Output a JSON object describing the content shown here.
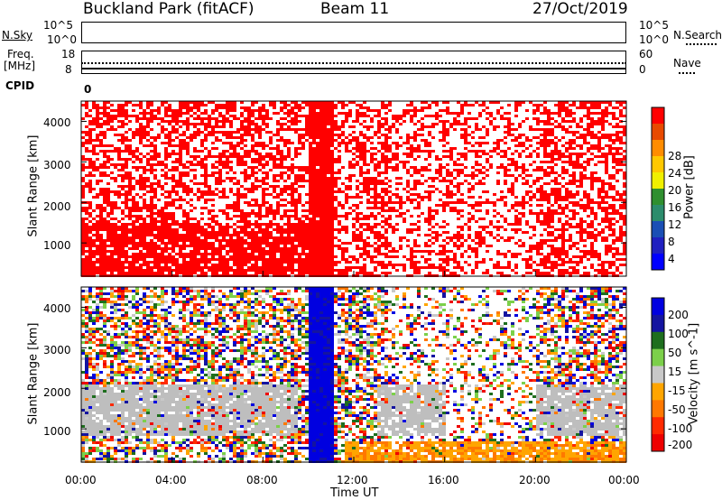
{
  "header": {
    "site": "Buckland Park (fitACF)",
    "beam": "Beam 11",
    "date": "27/Oct/2019"
  },
  "top_panels": {
    "nsky_label": "N.Sky",
    "nsky_ticks": [
      "10^5",
      "10^0"
    ],
    "nsearch_label": "N.Search",
    "nsearch_ticks": [
      "10^5",
      "10^0"
    ],
    "freq_label": "Freq.",
    "freq_unit": "[MHz]",
    "freq_ticks": [
      "18",
      "8"
    ],
    "nave_label": "Nave",
    "nave_ticks": [
      "60",
      "0"
    ],
    "cpid_label": "CPID",
    "cpid_value": "0"
  },
  "chart_data": [
    {
      "type": "heatmap",
      "panel": "power",
      "ylabel": "Slant Range [km]",
      "yticks": [
        "4000",
        "3000",
        "2000",
        "1000"
      ],
      "ylim": [
        180,
        4500
      ],
      "xticks": [
        "00:00",
        "04:00",
        "08:00",
        "12:00",
        "16:00",
        "20:00",
        "00:00"
      ],
      "colorbar_label": "Power [dB]",
      "colorbar_ticks": [
        "28",
        "24",
        "20",
        "16",
        "12",
        "8",
        "4"
      ],
      "colorbar_colors": [
        "#ff0000",
        "#e84a00",
        "#ff8c00",
        "#ffc800",
        "#f0f000",
        "#2f8f2f",
        "#2c8c6c",
        "#1a4fb5",
        "#2020c0",
        "#0000ff"
      ],
      "dominant_color": "#ff0000",
      "description_values": {
        "low_echo_gap_start_hour": 11.3,
        "dense_column_hour": 10.2
      }
    },
    {
      "type": "heatmap",
      "panel": "velocity",
      "xlabel": "Time UT",
      "ylabel": "Slant Range [km]",
      "yticks": [
        "4000",
        "3000",
        "2000",
        "1000"
      ],
      "ylim": [
        180,
        4500
      ],
      "xticks": [
        "00:00",
        "04:00",
        "08:00",
        "12:00",
        "16:00",
        "20:00",
        "00:00"
      ],
      "colorbar_label": "Velocity [m s^-1]",
      "colorbar_ticks": [
        "200",
        "100",
        "50",
        "15",
        "-15",
        "-50",
        "-100",
        "-200"
      ],
      "colorbar_colors": [
        "#0000e0",
        "#1414a0",
        "#1e6e1e",
        "#7cd04a",
        "#c8c8c8",
        "#ffa500",
        "#ff7800",
        "#ff2a00",
        "#ee0000"
      ],
      "ground_scatter_color": "#bebebe"
    }
  ]
}
